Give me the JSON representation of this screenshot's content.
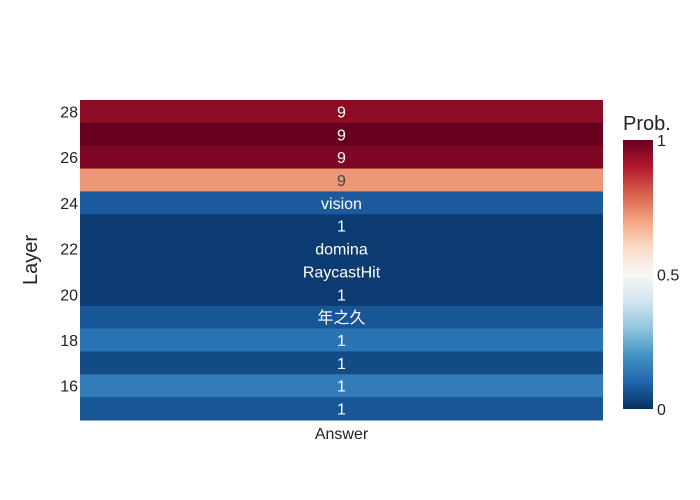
{
  "chart_data": {
    "type": "heatmap",
    "title": "",
    "xlabel": "",
    "ylabel": "Layer",
    "x_categories": [
      "Answer"
    ],
    "layers": [
      28,
      27,
      26,
      25,
      24,
      23,
      22,
      21,
      20,
      19,
      18,
      17,
      16,
      15
    ],
    "labels": [
      "9",
      "9",
      "9",
      "9",
      "vision",
      "1",
      "domina",
      "RaycastHit",
      "1",
      "年之久",
      "1",
      "1",
      "1",
      "1"
    ],
    "probabilities": [
      0.95,
      1.0,
      0.97,
      0.72,
      0.08,
      0.02,
      0.02,
      0.02,
      0.02,
      0.07,
      0.13,
      0.05,
      0.15,
      0.07
    ],
    "y_ticks": [
      28,
      26,
      24,
      22,
      20,
      18,
      16
    ],
    "colorbar": {
      "title": "Prob.",
      "range": [
        0,
        1
      ],
      "ticks": [
        "0",
        "0.5",
        "1"
      ],
      "colorscale": [
        "#053061",
        "#2166ac",
        "#4393c3",
        "#92c5de",
        "#d1e5f0",
        "#f7f7f7",
        "#fddbc7",
        "#f4a582",
        "#d6604d",
        "#b2182b",
        "#67001f"
      ]
    }
  }
}
